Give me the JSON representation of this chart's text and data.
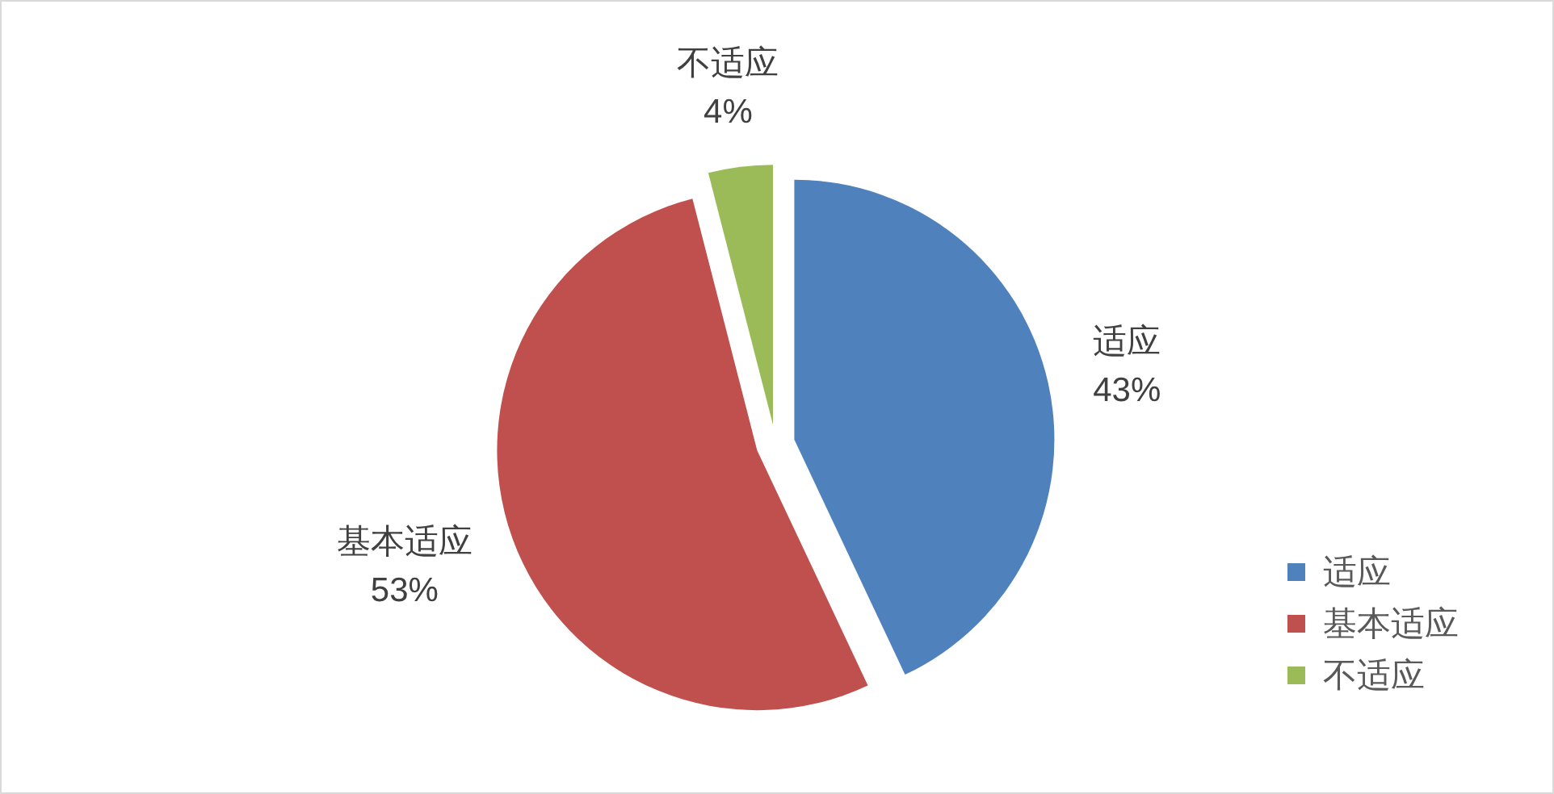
{
  "chart_data": {
    "type": "pie",
    "categories": [
      "适应",
      "基本适应",
      "不适应"
    ],
    "values": [
      43,
      53,
      4
    ],
    "colors": [
      "#4f81bd",
      "#c0504d",
      "#9bbb59"
    ],
    "value_labels": [
      "43%",
      "53%",
      "4%"
    ],
    "legend": "bottom right"
  }
}
